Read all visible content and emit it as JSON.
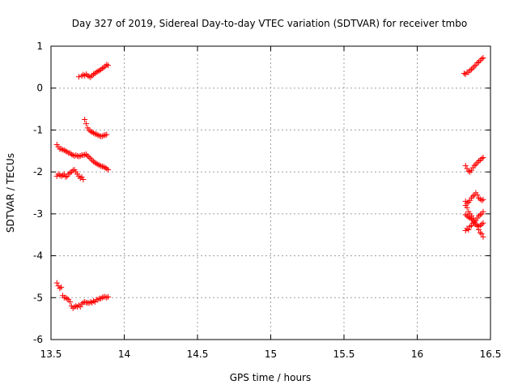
{
  "chart_data": {
    "type": "scatter",
    "title": "Day 327 of 2019, Sidereal Day-to-day VTEC variation (SDTVAR) for receiver tmbo",
    "xlabel": "GPS time / hours",
    "ylabel": "SDTVAR / TECUs",
    "xlim": [
      13.5,
      16.5
    ],
    "ylim": [
      -6,
      1
    ],
    "xticks": [
      13.5,
      14,
      14.5,
      15,
      15.5,
      16,
      16.5
    ],
    "xtick_labels": [
      "13.5",
      "14",
      "14.5",
      "15",
      "15.5",
      "16",
      "16.5"
    ],
    "yticks": [
      -6,
      -5,
      -4,
      -3,
      -2,
      -1,
      0,
      1
    ],
    "ytick_labels": [
      "-6",
      "-5",
      "-4",
      "-3",
      "-2",
      "-1",
      "0",
      "1"
    ],
    "grid": true,
    "marker": "+",
    "color": "#ff0000",
    "series": [
      {
        "name": "arc-top-left",
        "x": [
          13.69,
          13.71,
          13.72,
          13.73,
          13.74,
          13.75,
          13.76,
          13.77,
          13.78,
          13.79,
          13.8,
          13.81,
          13.82,
          13.83,
          13.84,
          13.85,
          13.86,
          13.87,
          13.88,
          13.89
        ],
        "y": [
          0.27,
          0.29,
          0.32,
          0.3,
          0.33,
          0.3,
          0.28,
          0.26,
          0.3,
          0.33,
          0.35,
          0.38,
          0.4,
          0.42,
          0.44,
          0.47,
          0.49,
          0.52,
          0.56,
          0.54
        ]
      },
      {
        "name": "arc-minus1-left",
        "x": [
          13.73,
          13.74,
          13.75,
          13.76,
          13.77,
          13.78,
          13.79,
          13.8,
          13.81,
          13.82,
          13.83,
          13.84,
          13.85,
          13.86,
          13.87,
          13.88
        ],
        "y": [
          -0.75,
          -0.85,
          -0.95,
          -1.0,
          -1.03,
          -1.05,
          -1.07,
          -1.09,
          -1.1,
          -1.12,
          -1.14,
          -1.15,
          -1.15,
          -1.13,
          -1.12,
          -1.11
        ]
      },
      {
        "name": "arc-minus1.5-left",
        "x": [
          13.54,
          13.55,
          13.56,
          13.57,
          13.58,
          13.59,
          13.6,
          13.61,
          13.62,
          13.63,
          13.64,
          13.65,
          13.66,
          13.67,
          13.68,
          13.69,
          13.7,
          13.71,
          13.72,
          13.73,
          13.74,
          13.75,
          13.76,
          13.77,
          13.78,
          13.79,
          13.8,
          13.81,
          13.82,
          13.83,
          13.84,
          13.85,
          13.86,
          13.87,
          13.88,
          13.89
        ],
        "y": [
          -1.35,
          -1.4,
          -1.45,
          -1.45,
          -1.47,
          -1.48,
          -1.5,
          -1.52,
          -1.55,
          -1.55,
          -1.58,
          -1.6,
          -1.62,
          -1.6,
          -1.62,
          -1.63,
          -1.62,
          -1.6,
          -1.6,
          -1.59,
          -1.58,
          -1.62,
          -1.65,
          -1.68,
          -1.72,
          -1.75,
          -1.78,
          -1.8,
          -1.82,
          -1.84,
          -1.86,
          -1.87,
          -1.88,
          -1.9,
          -1.92,
          -1.95
        ]
      },
      {
        "name": "arc-minus2-left",
        "x": [
          13.54,
          13.55,
          13.56,
          13.57,
          13.58,
          13.59,
          13.6,
          13.61,
          13.62,
          13.63,
          13.64,
          13.65,
          13.66,
          13.67,
          13.68,
          13.69,
          13.7,
          13.71,
          13.72
        ],
        "y": [
          -2.1,
          -2.05,
          -2.08,
          -2.1,
          -2.08,
          -2.05,
          -2.12,
          -2.1,
          -2.05,
          -2.02,
          -2.0,
          -1.96,
          -1.95,
          -2.0,
          -2.05,
          -2.1,
          -2.15,
          -2.12,
          -2.18
        ]
      },
      {
        "name": "arc-minus5-left",
        "x": [
          13.54,
          13.55,
          13.56,
          13.57,
          13.58,
          13.59,
          13.6,
          13.61,
          13.62,
          13.63,
          13.64,
          13.65,
          13.66,
          13.67,
          13.68,
          13.69,
          13.7,
          13.71,
          13.72,
          13.73,
          13.74,
          13.75,
          13.76,
          13.77,
          13.78,
          13.79,
          13.8,
          13.81,
          13.82,
          13.83,
          13.84,
          13.85,
          13.86,
          13.87,
          13.88,
          13.89
        ],
        "y": [
          -4.65,
          -4.72,
          -4.78,
          -4.75,
          -4.95,
          -5.0,
          -5.0,
          -5.02,
          -5.05,
          -5.1,
          -5.2,
          -5.25,
          -5.22,
          -5.2,
          -5.22,
          -5.18,
          -5.22,
          -5.15,
          -5.12,
          -5.1,
          -5.12,
          -5.12,
          -5.13,
          -5.1,
          -5.12,
          -5.08,
          -5.1,
          -5.05,
          -5.05,
          -5.02,
          -5.02,
          -5.0,
          -4.98,
          -4.98,
          -5.0,
          -4.98
        ]
      },
      {
        "name": "arc-top-right",
        "x": [
          16.32,
          16.33,
          16.34,
          16.35,
          16.36,
          16.37,
          16.38,
          16.39,
          16.4,
          16.41,
          16.42,
          16.43,
          16.44,
          16.45
        ],
        "y": [
          0.35,
          0.33,
          0.38,
          0.38,
          0.42,
          0.45,
          0.48,
          0.52,
          0.55,
          0.6,
          0.62,
          0.66,
          0.7,
          0.72
        ]
      },
      {
        "name": "arc-minus2-right",
        "x": [
          16.33,
          16.34,
          16.35,
          16.36,
          16.37,
          16.38,
          16.39,
          16.4,
          16.41,
          16.42,
          16.43,
          16.44,
          16.45
        ],
        "y": [
          -1.85,
          -1.92,
          -1.98,
          -2.0,
          -1.96,
          -1.9,
          -1.85,
          -1.82,
          -1.78,
          -1.74,
          -1.72,
          -1.68,
          -1.66
        ]
      },
      {
        "name": "arc-minus2.7-right",
        "x": [
          16.33,
          16.34,
          16.35,
          16.36,
          16.37,
          16.38,
          16.39,
          16.4,
          16.41,
          16.42,
          16.43,
          16.44,
          16.45
        ],
        "y": [
          -2.8,
          -2.75,
          -2.72,
          -2.68,
          -2.62,
          -2.58,
          -2.55,
          -2.5,
          -2.55,
          -2.62,
          -2.65,
          -2.68,
          -2.66
        ]
      },
      {
        "name": "arc-minus3-right-rising",
        "x": [
          16.33,
          16.34,
          16.35,
          16.36,
          16.37,
          16.38,
          16.39,
          16.4,
          16.41,
          16.42,
          16.43,
          16.44,
          16.45
        ],
        "y": [
          -3.4,
          -3.35,
          -3.38,
          -3.3,
          -3.28,
          -3.22,
          -3.18,
          -3.15,
          -3.1,
          -3.05,
          -3.02,
          -3.0,
          -2.95
        ]
      },
      {
        "name": "arc-minus3-right-falling",
        "x": [
          16.33,
          16.34,
          16.35,
          16.36,
          16.37,
          16.38,
          16.39,
          16.4,
          16.41,
          16.42,
          16.43,
          16.44,
          16.45
        ],
        "y": [
          -2.7,
          -2.85,
          -2.95,
          -3.0,
          -3.05,
          -3.1,
          -3.2,
          -3.25,
          -3.3,
          -3.38,
          -3.45,
          -3.48,
          -3.55
        ]
      },
      {
        "name": "arc-minus3.2-right",
        "x": [
          16.33,
          16.34,
          16.35,
          16.36,
          16.37,
          16.38,
          16.39,
          16.4,
          16.41,
          16.42,
          16.43,
          16.44,
          16.45
        ],
        "y": [
          -3.02,
          -3.05,
          -3.08,
          -3.1,
          -3.12,
          -3.15,
          -3.2,
          -3.25,
          -3.28,
          -3.3,
          -3.28,
          -3.25,
          -3.22
        ]
      }
    ]
  }
}
